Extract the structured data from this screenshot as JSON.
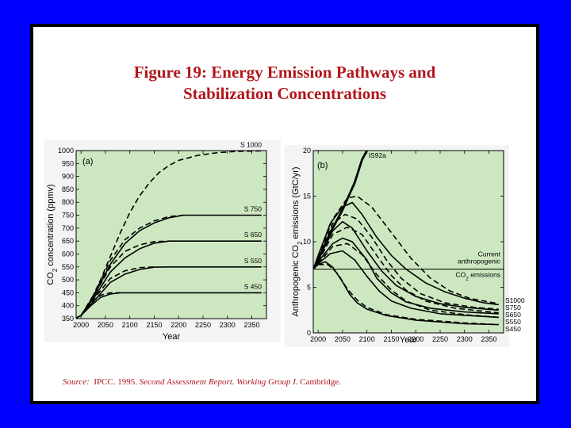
{
  "title_lines": [
    "Figure 19:  Energy Emission Pathways and",
    "Stabilization Concentrations"
  ],
  "source": {
    "label": "Source:",
    "org": "IPCC. 1995.",
    "work": "Second Assessment Report. Working Group I.",
    "place": "Cambridge."
  },
  "colors": {
    "background": "#0000ff",
    "title": "#b0171c",
    "plot_fill": "#cde8c1"
  },
  "chart_data": [
    {
      "type": "line",
      "panel": "(a)",
      "xlabel": "Year",
      "ylabel": "CO2 concentration (ppmv)",
      "ylabel_parts": [
        "CO",
        "2",
        " concentration (ppmv)"
      ],
      "xlim": [
        1990,
        2380
      ],
      "ylim": [
        350,
        1000
      ],
      "xticks": [
        2000,
        2050,
        2100,
        2150,
        2200,
        2250,
        2300,
        2350
      ],
      "yticks": [
        350,
        400,
        450,
        500,
        550,
        600,
        650,
        700,
        750,
        800,
        850,
        900,
        950,
        1000
      ],
      "series": [
        {
          "name": "S 1000",
          "style": "dashed",
          "points": [
            [
              1990,
              352
            ],
            [
              2000,
              362
            ],
            [
              2020,
              420
            ],
            [
              2040,
              500
            ],
            [
              2060,
              590
            ],
            [
              2080,
              680
            ],
            [
              2100,
              760
            ],
            [
              2120,
              825
            ],
            [
              2140,
              875
            ],
            [
              2160,
              915
            ],
            [
              2180,
              942
            ],
            [
              2200,
              962
            ],
            [
              2240,
              982
            ],
            [
              2280,
              992
            ],
            [
              2320,
              997
            ],
            [
              2370,
              999
            ]
          ]
        },
        {
          "name": "S 750",
          "style": "solid",
          "points": [
            [
              1990,
              352
            ],
            [
              2000,
              362
            ],
            [
              2030,
              450
            ],
            [
              2060,
              560
            ],
            [
              2090,
              640
            ],
            [
              2120,
              690
            ],
            [
              2150,
              720
            ],
            [
              2180,
              740
            ],
            [
              2210,
              750
            ],
            [
              2260,
              750
            ],
            [
              2370,
              750
            ]
          ]
        },
        {
          "name": "",
          "style": "dashed",
          "points": [
            [
              2000,
              362
            ],
            [
              2030,
              455
            ],
            [
              2060,
              575
            ],
            [
              2090,
              655
            ],
            [
              2120,
              700
            ],
            [
              2150,
              728
            ],
            [
              2180,
              745
            ],
            [
              2210,
              750
            ]
          ]
        },
        {
          "name": "S 650",
          "style": "solid",
          "points": [
            [
              1990,
              352
            ],
            [
              2000,
              362
            ],
            [
              2030,
              440
            ],
            [
              2060,
              530
            ],
            [
              2090,
              585
            ],
            [
              2120,
              620
            ],
            [
              2150,
              642
            ],
            [
              2180,
              650
            ],
            [
              2220,
              650
            ],
            [
              2370,
              650
            ]
          ]
        },
        {
          "name": "",
          "style": "dashed",
          "points": [
            [
              2000,
              362
            ],
            [
              2030,
              450
            ],
            [
              2060,
              550
            ],
            [
              2090,
              610
            ],
            [
              2120,
              635
            ],
            [
              2150,
              648
            ],
            [
              2180,
              650
            ]
          ]
        },
        {
          "name": "S 550",
          "style": "solid",
          "points": [
            [
              1990,
              352
            ],
            [
              2000,
              362
            ],
            [
              2030,
              425
            ],
            [
              2060,
              490
            ],
            [
              2090,
              522
            ],
            [
              2120,
              540
            ],
            [
              2150,
              549
            ],
            [
              2180,
              550
            ],
            [
              2370,
              550
            ]
          ]
        },
        {
          "name": "",
          "style": "dashed",
          "points": [
            [
              2000,
              362
            ],
            [
              2030,
              435
            ],
            [
              2060,
              505
            ],
            [
              2090,
              535
            ],
            [
              2120,
              547
            ],
            [
              2150,
              550
            ]
          ]
        },
        {
          "name": "S 450",
          "style": "solid",
          "points": [
            [
              1990,
              352
            ],
            [
              2000,
              362
            ],
            [
              2020,
              400
            ],
            [
              2040,
              432
            ],
            [
              2060,
              445
            ],
            [
              2080,
              450
            ],
            [
              2370,
              450
            ]
          ]
        },
        {
          "name": "",
          "style": "dashed",
          "points": [
            [
              2000,
              362
            ],
            [
              2020,
              410
            ],
            [
              2040,
              440
            ],
            [
              2060,
              450
            ],
            [
              2080,
              450
            ]
          ]
        }
      ]
    },
    {
      "type": "line",
      "panel": "(b)",
      "xlabel": "Year",
      "ylabel": "Anthropogenic CO2 emissions (GtC/yr)",
      "ylabel_parts": [
        "Anthropogenic CO",
        "2",
        " emissions (GtC/yr)"
      ],
      "xlim": [
        1990,
        2380
      ],
      "ylim": [
        0,
        20
      ],
      "xticks": [
        2000,
        2050,
        2100,
        2150,
        2200,
        2250,
        2300,
        2350
      ],
      "yticks": [
        0,
        5,
        10,
        15,
        20
      ],
      "reference": {
        "value": 7.0,
        "label_lines": [
          "Current",
          "anthropogenic"
        ],
        "label_last": [
          "CO",
          "2",
          " emissions"
        ]
      },
      "series": [
        {
          "name": "IS92a",
          "style": "solid-bold",
          "points": [
            [
              1990,
              7.0
            ],
            [
              2000,
              8.0
            ],
            [
              2025,
              11.0
            ],
            [
              2050,
              13.5
            ],
            [
              2075,
              16.5
            ],
            [
              2090,
              19.0
            ],
            [
              2100,
              20.0
            ]
          ]
        },
        {
          "name": "S1000",
          "style": "solid",
          "points": [
            [
              1990,
              7.0
            ],
            [
              2000,
              8.5
            ],
            [
              2025,
              12.0
            ],
            [
              2050,
              13.8
            ],
            [
              2070,
              14.3
            ],
            [
              2090,
              13.0
            ],
            [
              2120,
              10.5
            ],
            [
              2150,
              8.5
            ],
            [
              2180,
              7.0
            ],
            [
              2220,
              5.5
            ],
            [
              2260,
              4.5
            ],
            [
              2300,
              3.8
            ],
            [
              2340,
              3.3
            ],
            [
              2370,
              3.1
            ]
          ]
        },
        {
          "name": "",
          "style": "dashed",
          "points": [
            [
              2000,
              8.2
            ],
            [
              2030,
              12.5
            ],
            [
              2060,
              14.8
            ],
            [
              2080,
              15.0
            ],
            [
              2110,
              13.8
            ],
            [
              2150,
              11.0
            ],
            [
              2190,
              8.2
            ],
            [
              2230,
              6.0
            ],
            [
              2270,
              4.6
            ],
            [
              2310,
              3.8
            ],
            [
              2370,
              3.2
            ]
          ]
        },
        {
          "name": "S750",
          "style": "solid",
          "points": [
            [
              1990,
              7.0
            ],
            [
              2000,
              8.0
            ],
            [
              2030,
              11.2
            ],
            [
              2050,
              12.2
            ],
            [
              2070,
              11.5
            ],
            [
              2100,
              9.0
            ],
            [
              2130,
              6.8
            ],
            [
              2160,
              5.2
            ],
            [
              2200,
              4.0
            ],
            [
              2250,
              3.2
            ],
            [
              2300,
              2.8
            ],
            [
              2370,
              2.5
            ]
          ]
        },
        {
          "name": "",
          "style": "dashed",
          "points": [
            [
              2000,
              8.0
            ],
            [
              2030,
              12.0
            ],
            [
              2055,
              13.0
            ],
            [
              2080,
              12.5
            ],
            [
              2110,
              10.5
            ],
            [
              2140,
              8.0
            ],
            [
              2170,
              6.0
            ],
            [
              2210,
              4.3
            ],
            [
              2260,
              3.3
            ],
            [
              2320,
              2.8
            ],
            [
              2370,
              2.6
            ]
          ]
        },
        {
          "name": "S650",
          "style": "solid",
          "points": [
            [
              1990,
              7.0
            ],
            [
              2000,
              7.8
            ],
            [
              2030,
              9.8
            ],
            [
              2050,
              10.4
            ],
            [
              2070,
              10.0
            ],
            [
              2100,
              8.0
            ],
            [
              2120,
              6.0
            ],
            [
              2150,
              4.4
            ],
            [
              2180,
              3.4
            ],
            [
              2230,
              2.7
            ],
            [
              2300,
              2.3
            ],
            [
              2370,
              2.1
            ]
          ]
        },
        {
          "name": "",
          "style": "dashed",
          "points": [
            [
              2000,
              7.8
            ],
            [
              2030,
              10.8
            ],
            [
              2060,
              11.6
            ],
            [
              2090,
              10.8
            ],
            [
              2120,
              8.5
            ],
            [
              2150,
              6.3
            ],
            [
              2180,
              4.7
            ],
            [
              2220,
              3.5
            ],
            [
              2280,
              2.7
            ],
            [
              2370,
              2.2
            ]
          ]
        },
        {
          "name": "S550",
          "style": "solid",
          "points": [
            [
              1990,
              7.0
            ],
            [
              2000,
              7.6
            ],
            [
              2025,
              8.7
            ],
            [
              2050,
              9.0
            ],
            [
              2075,
              8.0
            ],
            [
              2100,
              6.2
            ],
            [
              2125,
              4.6
            ],
            [
              2150,
              3.5
            ],
            [
              2190,
              2.7
            ],
            [
              2250,
              2.1
            ],
            [
              2370,
              1.7
            ]
          ]
        },
        {
          "name": "",
          "style": "dashed",
          "points": [
            [
              2000,
              7.6
            ],
            [
              2030,
              9.5
            ],
            [
              2060,
              9.8
            ],
            [
              2090,
              8.6
            ],
            [
              2120,
              6.4
            ],
            [
              2150,
              4.7
            ],
            [
              2180,
              3.5
            ],
            [
              2230,
              2.5
            ],
            [
              2300,
              2.0
            ],
            [
              2370,
              1.7
            ]
          ]
        },
        {
          "name": "S450",
          "style": "solid",
          "points": [
            [
              1990,
              7.0
            ],
            [
              2000,
              7.5
            ],
            [
              2015,
              7.8
            ],
            [
              2030,
              7.2
            ],
            [
              2050,
              5.6
            ],
            [
              2065,
              4.2
            ],
            [
              2080,
              3.3
            ],
            [
              2100,
              2.6
            ],
            [
              2140,
              1.9
            ],
            [
              2200,
              1.4
            ],
            [
              2300,
              1.0
            ],
            [
              2370,
              0.9
            ]
          ]
        },
        {
          "name": "",
          "style": "dashed",
          "points": [
            [
              2000,
              7.5
            ],
            [
              2020,
              7.5
            ],
            [
              2040,
              6.5
            ],
            [
              2060,
              4.8
            ],
            [
              2080,
              3.6
            ],
            [
              2100,
              2.8
            ],
            [
              2140,
              2.0
            ],
            [
              2200,
              1.5
            ],
            [
              2300,
              1.1
            ],
            [
              2370,
              0.9
            ]
          ]
        }
      ]
    }
  ]
}
